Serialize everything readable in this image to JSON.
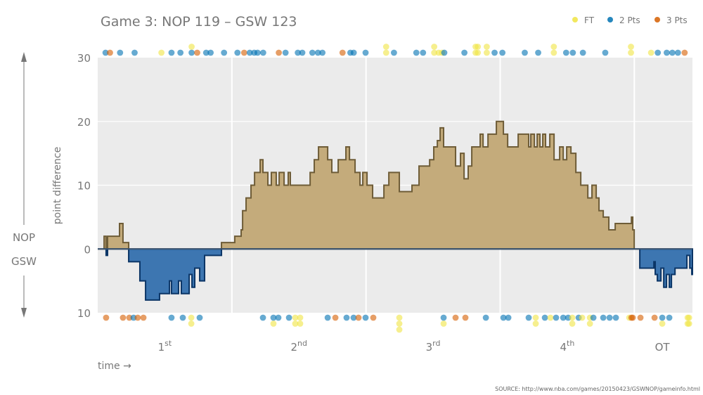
{
  "chart_data": {
    "type": "area",
    "title": "Game 3: NOP 119  –  GSW 123",
    "ylabel": "point difference",
    "xlabel": "time →",
    "source": "SOURCE: http://www.nba.com/games/20150423/GSWNOP/gameinfo.html",
    "side_labels": {
      "top": "NOP",
      "bottom": "GSW"
    },
    "ylim": [
      -10,
      30
    ],
    "y_ticks": [
      {
        "v": 30,
        "label": "30"
      },
      {
        "v": 20,
        "label": "20"
      },
      {
        "v": 10,
        "label": "10"
      },
      {
        "v": 0,
        "label": "0"
      },
      {
        "v": -10,
        "label": "10"
      }
    ],
    "xlim_minutes": [
      0,
      53.2
    ],
    "periods": [
      {
        "label": "1",
        "sup": "st",
        "start": 0,
        "end": 12
      },
      {
        "label": "2",
        "sup": "nd",
        "start": 12,
        "end": 24
      },
      {
        "label": "3",
        "sup": "rd",
        "start": 24,
        "end": 36
      },
      {
        "label": "4",
        "sup": "th",
        "start": 36,
        "end": 48
      },
      {
        "label": "OT",
        "sup": "",
        "start": 48,
        "end": 53
      }
    ],
    "grid": true,
    "legend": {
      "placement": "top-right",
      "items": [
        {
          "key": "1",
          "label": "FT",
          "color": "#f0e442"
        },
        {
          "key": "2",
          "label": "2 Pts",
          "color": "#0072b2"
        },
        {
          "key": "3",
          "label": "3 Pts",
          "color": "#d55e00"
        }
      ]
    },
    "colors": {
      "nop_fill": "#c4ab7b",
      "nop_line": "#6e5c37",
      "gsw_fill": "#3d76b1",
      "gsw_line": "#0b3566",
      "panel": "#ebebeb"
    },
    "diff_steps": [
      [
        0,
        0
      ],
      [
        0.57,
        2
      ],
      [
        0.75,
        -1
      ],
      [
        0.88,
        2
      ],
      [
        1.95,
        4
      ],
      [
        2.26,
        1
      ],
      [
        2.77,
        -2
      ],
      [
        3.77,
        -5
      ],
      [
        4.28,
        -8
      ],
      [
        5.53,
        -7
      ],
      [
        6.42,
        -5
      ],
      [
        6.6,
        -7
      ],
      [
        7.23,
        -5
      ],
      [
        7.48,
        -7
      ],
      [
        8.18,
        -4
      ],
      [
        8.43,
        -6
      ],
      [
        8.68,
        -3
      ],
      [
        9.12,
        -5
      ],
      [
        9.56,
        -1
      ],
      [
        11.07,
        1
      ],
      [
        12.26,
        2
      ],
      [
        12.83,
        3
      ],
      [
        12.96,
        6
      ],
      [
        13.27,
        8
      ],
      [
        13.71,
        10
      ],
      [
        14.03,
        12
      ],
      [
        14.53,
        14
      ],
      [
        14.78,
        12
      ],
      [
        15.22,
        10
      ],
      [
        15.53,
        12
      ],
      [
        15.97,
        10
      ],
      [
        16.23,
        12
      ],
      [
        16.67,
        10
      ],
      [
        17.04,
        12
      ],
      [
        17.23,
        10
      ],
      [
        19.0,
        12
      ],
      [
        19.37,
        14
      ],
      [
        19.75,
        16
      ],
      [
        20.57,
        14
      ],
      [
        20.94,
        12
      ],
      [
        21.51,
        14
      ],
      [
        22.2,
        16
      ],
      [
        22.52,
        14
      ],
      [
        23.02,
        12
      ],
      [
        23.46,
        10
      ],
      [
        23.71,
        12
      ],
      [
        24.09,
        10
      ],
      [
        24.59,
        8
      ],
      [
        25.6,
        10
      ],
      [
        26.04,
        12
      ],
      [
        26.98,
        9
      ],
      [
        28.11,
        10
      ],
      [
        28.74,
        13
      ],
      [
        29.69,
        14
      ],
      [
        30.06,
        16
      ],
      [
        30.38,
        17
      ],
      [
        30.63,
        19
      ],
      [
        30.94,
        16
      ],
      [
        32.01,
        13
      ],
      [
        32.45,
        15
      ],
      [
        32.77,
        11
      ],
      [
        33.14,
        13
      ],
      [
        33.46,
        16
      ],
      [
        34.21,
        18
      ],
      [
        34.47,
        16
      ],
      [
        34.91,
        18
      ],
      [
        35.66,
        20
      ],
      [
        36.29,
        18
      ],
      [
        36.67,
        16
      ],
      [
        37.61,
        18
      ],
      [
        38.55,
        16
      ],
      [
        38.74,
        18
      ],
      [
        39.06,
        16
      ],
      [
        39.31,
        18
      ],
      [
        39.56,
        16
      ],
      [
        39.81,
        18
      ],
      [
        40.06,
        16
      ],
      [
        40.44,
        18
      ],
      [
        40.82,
        14
      ],
      [
        41.32,
        16
      ],
      [
        41.64,
        14
      ],
      [
        41.95,
        16
      ],
      [
        42.33,
        15
      ],
      [
        42.77,
        12
      ],
      [
        43.21,
        10
      ],
      [
        43.84,
        8
      ],
      [
        44.21,
        10
      ],
      [
        44.59,
        8
      ],
      [
        44.84,
        6
      ],
      [
        45.22,
        5
      ],
      [
        45.72,
        3
      ],
      [
        46.29,
        4
      ],
      [
        47.74,
        5
      ],
      [
        47.86,
        3
      ],
      [
        47.99,
        0
      ],
      [
        48.49,
        -3
      ],
      [
        49.75,
        -2
      ],
      [
        49.87,
        -4
      ],
      [
        50.06,
        -5
      ],
      [
        50.38,
        -3
      ],
      [
        50.63,
        -6
      ],
      [
        50.88,
        -4
      ],
      [
        51.13,
        -6
      ],
      [
        51.32,
        -4
      ],
      [
        51.64,
        -3
      ],
      [
        52.7,
        -1
      ],
      [
        52.96,
        -3
      ],
      [
        53.14,
        -4
      ],
      [
        53.2,
        -4
      ]
    ],
    "nop_scores": [
      [
        0.7,
        "2"
      ],
      [
        1.1,
        "3"
      ],
      [
        2.0,
        "2"
      ],
      [
        3.3,
        "2"
      ],
      [
        5.7,
        "1"
      ],
      [
        6.6,
        "2"
      ],
      [
        7.4,
        "2"
      ],
      [
        8.4,
        "2,1"
      ],
      [
        8.9,
        "3"
      ],
      [
        9.7,
        "2"
      ],
      [
        10.1,
        "2"
      ],
      [
        11.3,
        "2"
      ],
      [
        12.5,
        "2"
      ],
      [
        13.1,
        "3"
      ],
      [
        13.6,
        "2"
      ],
      [
        14.0,
        "2"
      ],
      [
        14.3,
        "2"
      ],
      [
        14.8,
        "2"
      ],
      [
        16.2,
        "3"
      ],
      [
        16.8,
        "2"
      ],
      [
        17.9,
        "2"
      ],
      [
        18.3,
        "2"
      ],
      [
        19.2,
        "2"
      ],
      [
        19.7,
        "2"
      ],
      [
        20.1,
        "2"
      ],
      [
        21.9,
        "3"
      ],
      [
        22.6,
        "2"
      ],
      [
        22.9,
        "2"
      ],
      [
        23.96,
        "2"
      ],
      [
        25.8,
        "1,1"
      ],
      [
        26.5,
        "2"
      ],
      [
        28.5,
        "2"
      ],
      [
        29.1,
        "2"
      ],
      [
        30.1,
        "1,1"
      ],
      [
        30.5,
        "1"
      ],
      [
        30.8,
        "1"
      ],
      [
        31.0,
        "2"
      ],
      [
        32.8,
        "2"
      ],
      [
        33.8,
        "1,1"
      ],
      [
        34.0,
        "1,1"
      ],
      [
        34.8,
        "1,1"
      ],
      [
        35.5,
        "2"
      ],
      [
        36.2,
        "2"
      ],
      [
        38.2,
        "2"
      ],
      [
        39.4,
        "2"
      ],
      [
        40.8,
        "1,1"
      ],
      [
        41.9,
        "2"
      ],
      [
        42.5,
        "2"
      ],
      [
        43.4,
        "2"
      ],
      [
        45.4,
        "2"
      ],
      [
        47.7,
        "1,1"
      ],
      [
        49.5,
        "1"
      ],
      [
        50.1,
        "2"
      ],
      [
        50.9,
        "2"
      ],
      [
        51.4,
        "2"
      ],
      [
        51.9,
        "2"
      ],
      [
        52.5,
        "3"
      ]
    ],
    "gsw_scores": [
      [
        0.75,
        "3"
      ],
      [
        2.26,
        "3"
      ],
      [
        2.83,
        "3"
      ],
      [
        3.21,
        "2"
      ],
      [
        3.58,
        "3"
      ],
      [
        4.09,
        "3"
      ],
      [
        6.6,
        "2"
      ],
      [
        7.61,
        "2"
      ],
      [
        8.37,
        "1,1"
      ],
      [
        9.12,
        "2"
      ],
      [
        14.78,
        "2"
      ],
      [
        15.72,
        "2,1"
      ],
      [
        16.16,
        "2"
      ],
      [
        17.11,
        "2"
      ],
      [
        17.67,
        "1,1"
      ],
      [
        18.11,
        "1,1"
      ],
      [
        20.57,
        "2"
      ],
      [
        21.26,
        "3"
      ],
      [
        22.26,
        "2"
      ],
      [
        22.89,
        "2"
      ],
      [
        23.33,
        "3"
      ],
      [
        23.96,
        "2"
      ],
      [
        24.65,
        "3"
      ],
      [
        26.98,
        "1,1,1"
      ],
      [
        30.94,
        "2,1"
      ],
      [
        32.01,
        "3"
      ],
      [
        32.89,
        "3"
      ],
      [
        34.72,
        "2"
      ],
      [
        36.29,
        "2"
      ],
      [
        36.73,
        "2"
      ],
      [
        38.55,
        "2"
      ],
      [
        39.18,
        "1,1"
      ],
      [
        40.0,
        "2"
      ],
      [
        40.5,
        "1"
      ],
      [
        41.0,
        "2"
      ],
      [
        41.64,
        "2"
      ],
      [
        42.08,
        "2"
      ],
      [
        42.45,
        "1,1"
      ],
      [
        43.02,
        "2"
      ],
      [
        43.33,
        "1"
      ],
      [
        44.03,
        "1,1"
      ],
      [
        44.34,
        "2"
      ],
      [
        45.22,
        "2"
      ],
      [
        45.79,
        "2"
      ],
      [
        46.35,
        "2"
      ],
      [
        47.55,
        "1"
      ],
      [
        47.74,
        "3"
      ],
      [
        47.86,
        "3"
      ],
      [
        48.55,
        "3"
      ],
      [
        49.81,
        "3"
      ],
      [
        50.5,
        "2,1"
      ],
      [
        51.13,
        "2"
      ],
      [
        52.77,
        "1,1"
      ],
      [
        52.9,
        "1,1"
      ]
    ]
  }
}
